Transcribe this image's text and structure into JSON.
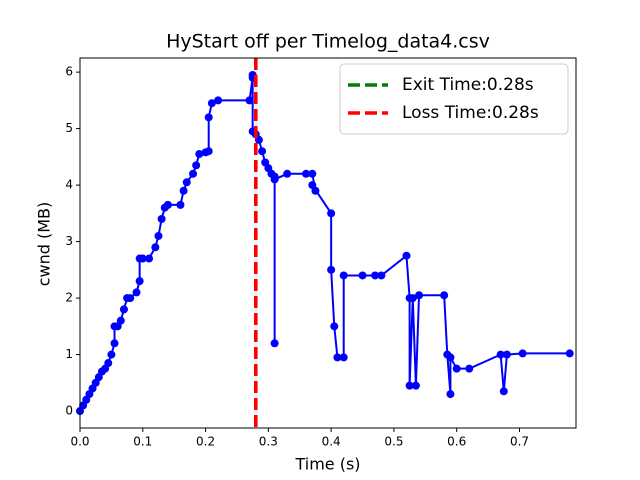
{
  "chart_data": {
    "type": "line",
    "title": "HyStart off per Timelog_data4.csv",
    "xlabel": "Time (s)",
    "ylabel": "cwnd (MB)",
    "x": [
      0.0,
      0.005,
      0.01,
      0.015,
      0.02,
      0.025,
      0.03,
      0.035,
      0.04,
      0.045,
      0.05,
      0.055,
      0.055,
      0.06,
      0.065,
      0.07,
      0.075,
      0.08,
      0.09,
      0.095,
      0.095,
      0.1,
      0.11,
      0.12,
      0.125,
      0.13,
      0.135,
      0.14,
      0.16,
      0.165,
      0.17,
      0.18,
      0.185,
      0.19,
      0.2,
      0.205,
      0.205,
      0.21,
      0.22,
      0.27,
      0.275,
      0.275,
      0.275,
      0.28,
      0.285,
      0.29,
      0.295,
      0.3,
      0.305,
      0.31,
      0.31,
      0.31,
      0.33,
      0.36,
      0.37,
      0.375,
      0.37,
      0.4,
      0.4,
      0.405,
      0.41,
      0.42,
      0.42,
      0.45,
      0.47,
      0.48,
      0.52,
      0.525,
      0.525,
      0.53,
      0.535,
      0.54,
      0.58,
      0.585,
      0.59,
      0.59,
      0.6,
      0.62,
      0.67,
      0.675,
      0.68,
      0.705,
      0.78
    ],
    "series": [
      {
        "color": "#0000ff",
        "values": [
          0,
          0.1,
          0.2,
          0.3,
          0.4,
          0.5,
          0.6,
          0.7,
          0.75,
          0.85,
          1.0,
          1.2,
          1.5,
          1.5,
          1.6,
          1.8,
          2.0,
          2.0,
          2.1,
          2.3,
          2.7,
          2.7,
          2.7,
          2.9,
          3.1,
          3.4,
          3.6,
          3.65,
          3.65,
          3.9,
          4.05,
          4.2,
          4.35,
          4.55,
          4.58,
          4.6,
          5.2,
          5.45,
          5.5,
          5.5,
          5.9,
          5.95,
          4.95,
          4.9,
          4.8,
          4.6,
          4.4,
          4.3,
          4.2,
          4.15,
          1.2,
          4.1,
          4.2,
          4.2,
          4.2,
          3.9,
          4.0,
          3.5,
          2.5,
          1.5,
          0.95,
          0.95,
          2.4,
          2.4,
          2.4,
          2.4,
          2.75,
          2.0,
          0.45,
          2.0,
          0.45,
          2.05,
          2.05,
          1.0,
          0.3,
          0.95,
          0.75,
          0.75,
          1.0,
          0.35,
          1.0,
          1.02,
          1.02
        ]
      }
    ],
    "vlines": [
      {
        "x": 0.28,
        "label": "Exit Time:0.28s",
        "color": "#008000"
      },
      {
        "x": 0.28,
        "label": "Loss Time:0.28s",
        "color": "#ff0000"
      }
    ],
    "legend": "upper right",
    "xlim": [
      0,
      0.79
    ],
    "ylim": [
      -0.3,
      6.25
    ],
    "xticks": [
      {
        "value": 0,
        "label": "0.0"
      },
      0.1,
      0.2,
      0.3,
      0.4,
      0.5,
      0.6,
      0.7
    ],
    "yticks": [
      0,
      1,
      2,
      3,
      4,
      5,
      6
    ]
  }
}
